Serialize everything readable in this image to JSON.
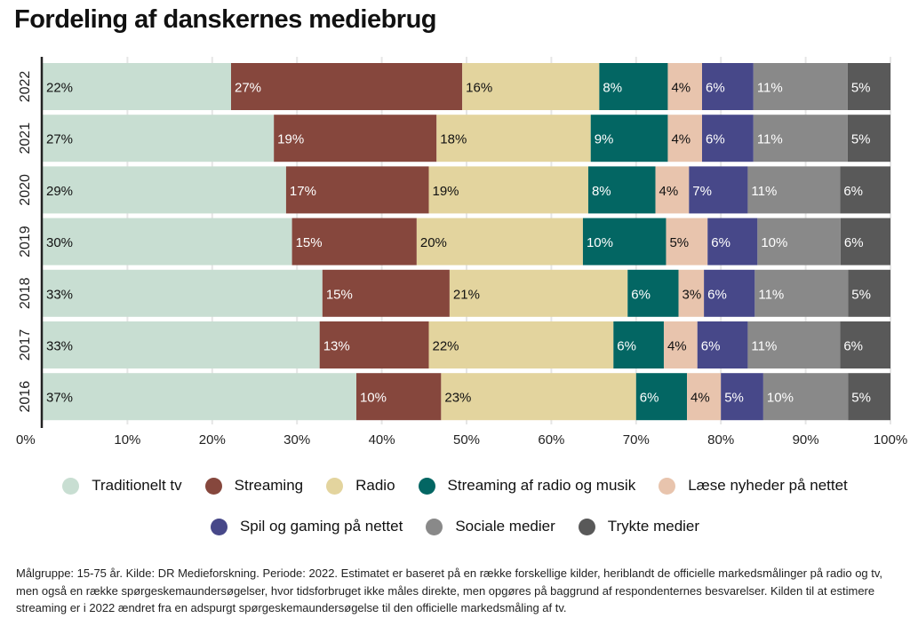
{
  "title": "Fordeling af danskernes mediebrug",
  "chart_data": {
    "type": "bar",
    "orientation": "horizontal",
    "stacked": true,
    "categories": [
      "2022",
      "2021",
      "2020",
      "2019",
      "2018",
      "2017",
      "2016"
    ],
    "series": [
      {
        "name": "Traditionelt tv",
        "color": "#c8ded2",
        "label_color": "#111",
        "values": [
          22,
          27,
          29,
          30,
          33,
          33,
          37
        ]
      },
      {
        "name": "Streaming",
        "color": "#86473d",
        "label_color": "#fff",
        "values": [
          27,
          19,
          17,
          15,
          15,
          13,
          10
        ]
      },
      {
        "name": "Radio",
        "color": "#e3d49e",
        "label_color": "#111",
        "values": [
          16,
          18,
          19,
          20,
          21,
          22,
          23
        ]
      },
      {
        "name": "Streaming af radio og musik",
        "color": "#036663",
        "label_color": "#fff",
        "values": [
          8,
          9,
          8,
          10,
          6,
          6,
          6
        ]
      },
      {
        "name": "Læse nyheder på nettet",
        "color": "#e8c4ad",
        "label_color": "#111",
        "values": [
          4,
          4,
          4,
          5,
          3,
          4,
          4
        ]
      },
      {
        "name": "Spil og gaming på nettet",
        "color": "#474889",
        "label_color": "#fff",
        "values": [
          6,
          6,
          7,
          6,
          6,
          6,
          5
        ]
      },
      {
        "name": "Sociale medier",
        "color": "#898989",
        "label_color": "#fff",
        "values": [
          11,
          11,
          11,
          10,
          11,
          11,
          10
        ]
      },
      {
        "name": "Trykte medier",
        "color": "#595959",
        "label_color": "#fff",
        "values": [
          5,
          5,
          6,
          6,
          5,
          6,
          5
        ]
      }
    ],
    "x_ticks": [
      "0%",
      "10%",
      "20%",
      "30%",
      "40%",
      "50%",
      "60%",
      "70%",
      "80%",
      "90%",
      "100%"
    ],
    "xlim": [
      0,
      100
    ],
    "grid": true,
    "legend_position": "bottom"
  },
  "footnote": "Målgruppe: 15-75 år. Kilde: DR Medieforskning. Periode: 2022. Estimatet er baseret på en række forskellige kilder, heriblandt de officielle markedsmålinger på radio og tv, men også en række spørgeskemaundersøgelser, hvor tidsforbruget ikke måles direkte, men opgøres på baggrund af respondenternes besvarelser. Kilden til at estimere streaming er i 2022 ændret fra en adspurgt spørgeskemaundersøgelse til den officielle markedsmåling af tv."
}
